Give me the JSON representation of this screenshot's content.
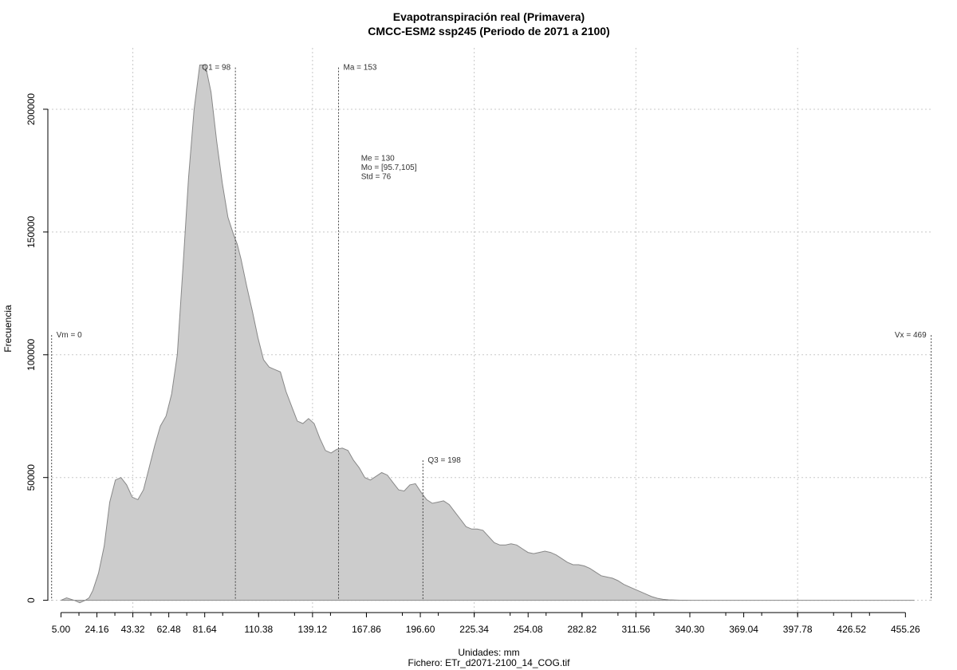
{
  "chart_data": {
    "type": "area",
    "title": "Evapotranspiración real (Primavera)",
    "subtitle": "CMCC-ESM2 ssp245 (Periodo de 2071 a 2100)",
    "xlabel": "Unidades: mm",
    "footer": "Fichero: ETr_d2071-2100_14_COG.tif",
    "ylabel": "Frecuencia",
    "xlim": [
      -2,
      470
    ],
    "ylim": [
      -5000,
      225000
    ],
    "x_ticks": [
      5,
      24.16,
      43.32,
      62.48,
      81.64,
      110.38,
      139.12,
      167.86,
      196.6,
      225.34,
      254.08,
      282.82,
      311.56,
      340.3,
      369.04,
      397.78,
      426.52,
      455.26
    ],
    "x_tick_labels": [
      "5.00",
      "24.16",
      "43.32",
      "62.48",
      "81.64",
      "110.38",
      "139.12",
      "167.86",
      "196.60",
      "225.34",
      "254.08",
      "282.82",
      "311.56",
      "340.30",
      "369.04",
      "397.78",
      "426.52",
      "455.26"
    ],
    "y_ticks": [
      0,
      50000,
      100000,
      150000,
      200000
    ],
    "y_tick_labels": [
      "0",
      "50000",
      "100000",
      "150000",
      "200000"
    ],
    "grid": true,
    "fill_color": "#cccccc",
    "line_color": "#888888",
    "x": [
      5,
      8,
      12,
      15,
      18,
      20,
      22,
      25,
      28,
      31,
      34,
      37,
      40,
      43,
      46,
      49,
      52,
      55,
      58,
      61,
      64,
      67,
      70,
      73,
      76,
      79,
      82,
      85,
      88,
      91,
      94,
      97,
      99,
      101,
      104,
      107,
      110,
      113,
      116,
      119,
      122,
      125,
      128,
      131,
      134,
      137,
      140,
      143,
      146,
      149,
      152,
      155,
      158,
      161,
      164,
      167,
      170,
      173,
      176,
      179,
      182,
      185,
      188,
      191,
      194,
      197,
      200,
      203,
      206,
      209,
      212,
      215,
      218,
      221,
      224,
      227,
      230,
      233,
      236,
      239,
      242,
      245,
      248,
      251,
      254,
      257,
      260,
      263,
      266,
      269,
      272,
      275,
      278,
      281,
      284,
      287,
      290,
      293,
      296,
      299,
      302,
      305,
      308,
      311,
      314,
      317,
      320,
      323,
      326,
      329,
      332,
      335,
      338,
      341,
      344,
      347,
      350,
      353,
      356,
      359,
      362,
      365,
      368,
      371,
      374,
      377,
      380,
      383,
      386,
      389,
      392,
      395,
      398,
      401,
      404,
      410,
      420,
      430,
      440,
      450,
      460
    ],
    "values": [
      0,
      1000,
      0,
      -1000,
      0,
      1000,
      4000,
      11000,
      22000,
      40000,
      49000,
      50000,
      47000,
      42000,
      41000,
      45000,
      54000,
      63000,
      71000,
      75000,
      84000,
      100000,
      135000,
      172000,
      200000,
      218000,
      218000,
      207000,
      187000,
      170000,
      156000,
      149000,
      145000,
      139000,
      128000,
      118000,
      107000,
      98000,
      95000,
      94000,
      93000,
      85000,
      79000,
      73000,
      72000,
      74000,
      72000,
      66000,
      61000,
      60000,
      61500,
      62000,
      61000,
      57000,
      54000,
      50000,
      49000,
      50500,
      52000,
      51000,
      48000,
      45000,
      44500,
      47000,
      47500,
      44000,
      41000,
      39500,
      40000,
      40500,
      39000,
      36000,
      33000,
      30000,
      29000,
      29000,
      28500,
      26000,
      23500,
      22500,
      22500,
      23000,
      22500,
      21000,
      19500,
      19000,
      19500,
      20000,
      19500,
      18500,
      17000,
      15500,
      14500,
      14500,
      14000,
      13000,
      11500,
      10000,
      9500,
      9000,
      8000,
      6500,
      5500,
      4500,
      3500,
      2500,
      1500,
      800,
      400,
      200,
      100,
      50,
      20,
      10,
      0,
      0,
      0,
      0,
      0,
      0,
      0,
      0,
      0,
      0,
      0,
      0,
      0,
      0,
      0,
      0,
      0,
      0,
      0,
      0,
      0,
      0,
      0,
      0,
      0,
      0,
      0
    ],
    "annotations": [
      {
        "label": "Vm = 0",
        "x": 0,
        "y_top": 108000,
        "align": "right"
      },
      {
        "label": "Q1 = 98",
        "x": 98,
        "y_top": 217000,
        "align": "left"
      },
      {
        "label": "Ma = 153",
        "x": 153,
        "y_top": 217000,
        "align": "right"
      },
      {
        "label": "Q3 = 198",
        "x": 198,
        "y_top": 57000,
        "align": "right"
      },
      {
        "label": "Vx = 469",
        "x": 469,
        "y_top": 108000,
        "align": "left"
      }
    ],
    "stats": {
      "x": 165,
      "y": 179000,
      "lines": [
        "Me = 130",
        "Mo = [95.7,105]",
        "Std = 76"
      ]
    }
  }
}
